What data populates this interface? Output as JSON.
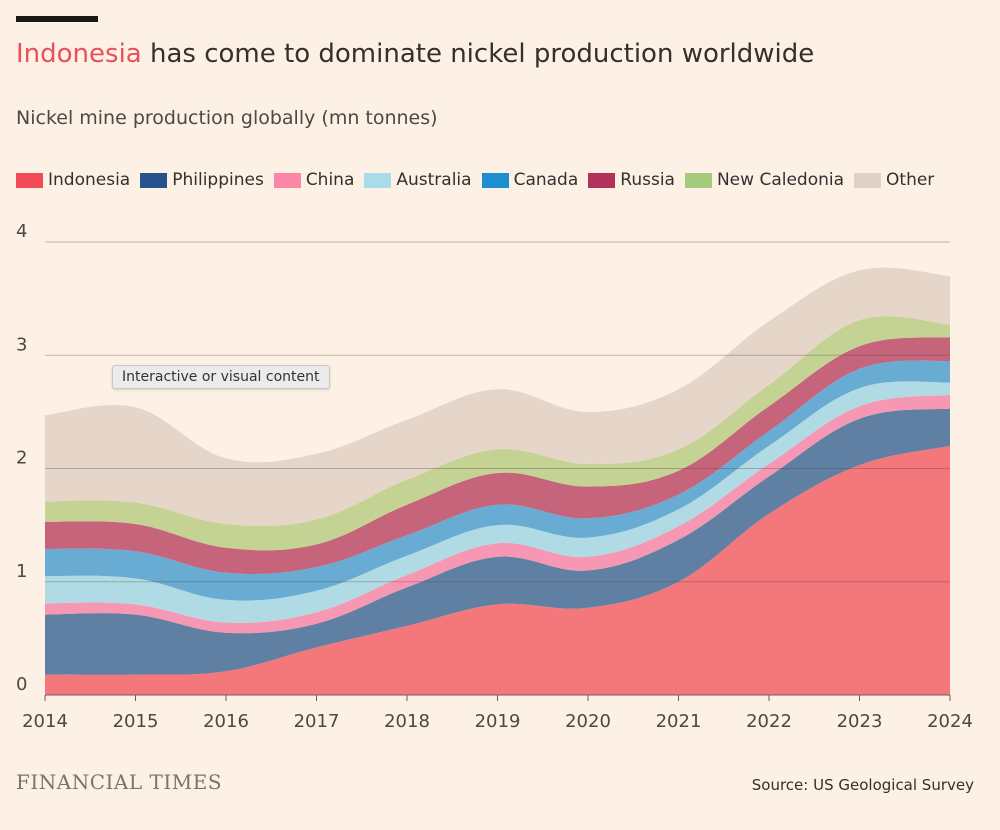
{
  "header": {
    "title_highlight": "Indonesia",
    "title_rest": " has come to dominate nickel production worldwide",
    "subtitle": "Nickel mine production globally (mn tonnes)"
  },
  "tooltip": {
    "text": "Interactive or visual content"
  },
  "footer": {
    "brand": "FINANCIAL TIMES",
    "source": "Source: US Geological Survey"
  },
  "chart_data": {
    "type": "area",
    "stacked": true,
    "x": [
      2014,
      2015,
      2016,
      2017,
      2018,
      2019,
      2020,
      2021,
      2022,
      2023,
      2024
    ],
    "ylim": [
      0,
      4
    ],
    "yticks": [
      0,
      1,
      2,
      3,
      4
    ],
    "grid": true,
    "legend_position": "top-left",
    "series": [
      {
        "name": "Indonesia",
        "color": "#f4777c",
        "legend_color": "#f04b57",
        "values": [
          0.18,
          0.18,
          0.21,
          0.42,
          0.61,
          0.8,
          0.77,
          1.0,
          1.6,
          2.03,
          2.2
        ]
      },
      {
        "name": "Philippines",
        "color": "#5f80a3",
        "legend_color": "#25528a",
        "values": [
          0.53,
          0.53,
          0.34,
          0.21,
          0.34,
          0.42,
          0.33,
          0.37,
          0.33,
          0.41,
          0.33
        ]
      },
      {
        "name": "China",
        "color": "#f697b4",
        "legend_color": "#fb86a8",
        "values": [
          0.1,
          0.09,
          0.09,
          0.1,
          0.11,
          0.12,
          0.12,
          0.12,
          0.11,
          0.11,
          0.12
        ]
      },
      {
        "name": "Australia",
        "color": "#b1dbe4",
        "legend_color": "#a9dbe8",
        "values": [
          0.24,
          0.23,
          0.2,
          0.19,
          0.17,
          0.16,
          0.17,
          0.15,
          0.16,
          0.16,
          0.11
        ]
      },
      {
        "name": "Canada",
        "color": "#68acd4",
        "legend_color": "#1d8fd0",
        "values": [
          0.24,
          0.24,
          0.24,
          0.21,
          0.18,
          0.18,
          0.17,
          0.13,
          0.13,
          0.17,
          0.19
        ]
      },
      {
        "name": "Russia",
        "color": "#c6647c",
        "legend_color": "#b3325c",
        "values": [
          0.24,
          0.24,
          0.22,
          0.2,
          0.27,
          0.28,
          0.28,
          0.21,
          0.22,
          0.2,
          0.21
        ]
      },
      {
        "name": "New Caledonia",
        "color": "#c4d394",
        "legend_color": "#a5cc7c",
        "values": [
          0.18,
          0.19,
          0.21,
          0.22,
          0.22,
          0.21,
          0.2,
          0.19,
          0.19,
          0.23,
          0.11
        ]
      },
      {
        "name": "Other",
        "color": "#e6d6c9",
        "legend_color": "#dfd2c8",
        "values": [
          0.76,
          0.84,
          0.58,
          0.58,
          0.53,
          0.53,
          0.46,
          0.53,
          0.56,
          0.44,
          0.43
        ]
      }
    ]
  }
}
